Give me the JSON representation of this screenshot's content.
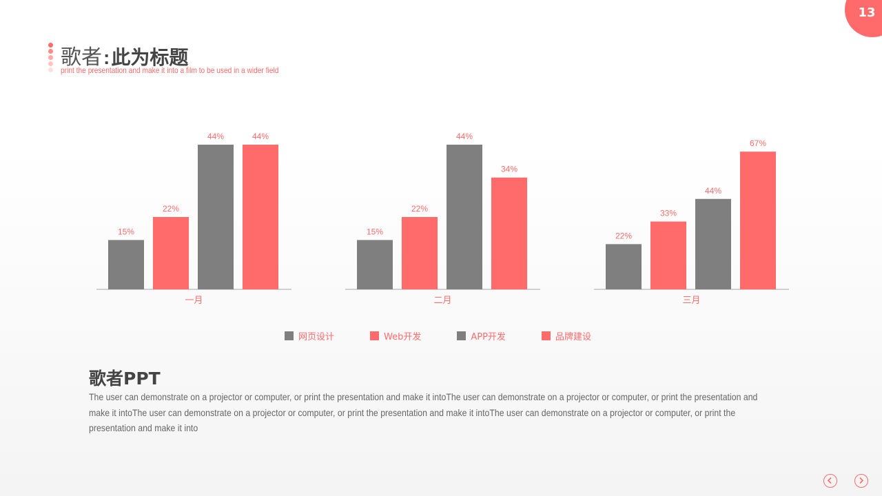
{
  "page": {
    "number": "13"
  },
  "header": {
    "title_singer": "歌者",
    "title_colon": ":",
    "title_main": "此为标题",
    "subtitle": "print the presentation and make it into a film to be used in a wider field"
  },
  "colors": {
    "gray": "#7f7f7f",
    "red": "#ff6b6b",
    "axis": "#a6a6a6",
    "label": "#ff6b6b"
  },
  "chart_data": {
    "type": "bar",
    "categories": [
      "一月",
      "二月",
      "三月"
    ],
    "series": [
      {
        "name": "网页设计",
        "values": [
          15,
          15,
          22
        ],
        "color": "#7f7f7f",
        "labels": [
          "15%",
          "15%",
          "22%"
        ]
      },
      {
        "name": "Web开发",
        "values": [
          22,
          22,
          33
        ],
        "color": "#ff6b6b",
        "labels": [
          "22%",
          "22%",
          "33%"
        ]
      },
      {
        "name": "APP开发",
        "values": [
          44,
          44,
          44
        ],
        "color": "#7f7f7f",
        "labels": [
          "44%",
          "44%",
          "44%"
        ]
      },
      {
        "name": "品牌建设",
        "values": [
          44,
          34,
          67
        ],
        "color": "#ff6b6b",
        "labels": [
          "44%",
          "34%",
          "67%"
        ]
      }
    ],
    "ylim": [
      0,
      70
    ],
    "grid": false,
    "legend": "bottom"
  },
  "body": {
    "title": "歌者PPT",
    "text": "The user can demonstrate on a projector or computer, or print the presentation and make it intoThe user can demonstrate on a projector or computer, or print the presentation and make it intoThe user can demonstrate on a projector or computer, or print the presentation and make it intoThe user can demonstrate on a projector or computer, or print the presentation and make it into"
  },
  "nav": {
    "prev_icon": "chevron-left-icon",
    "next_icon": "chevron-right-icon"
  }
}
